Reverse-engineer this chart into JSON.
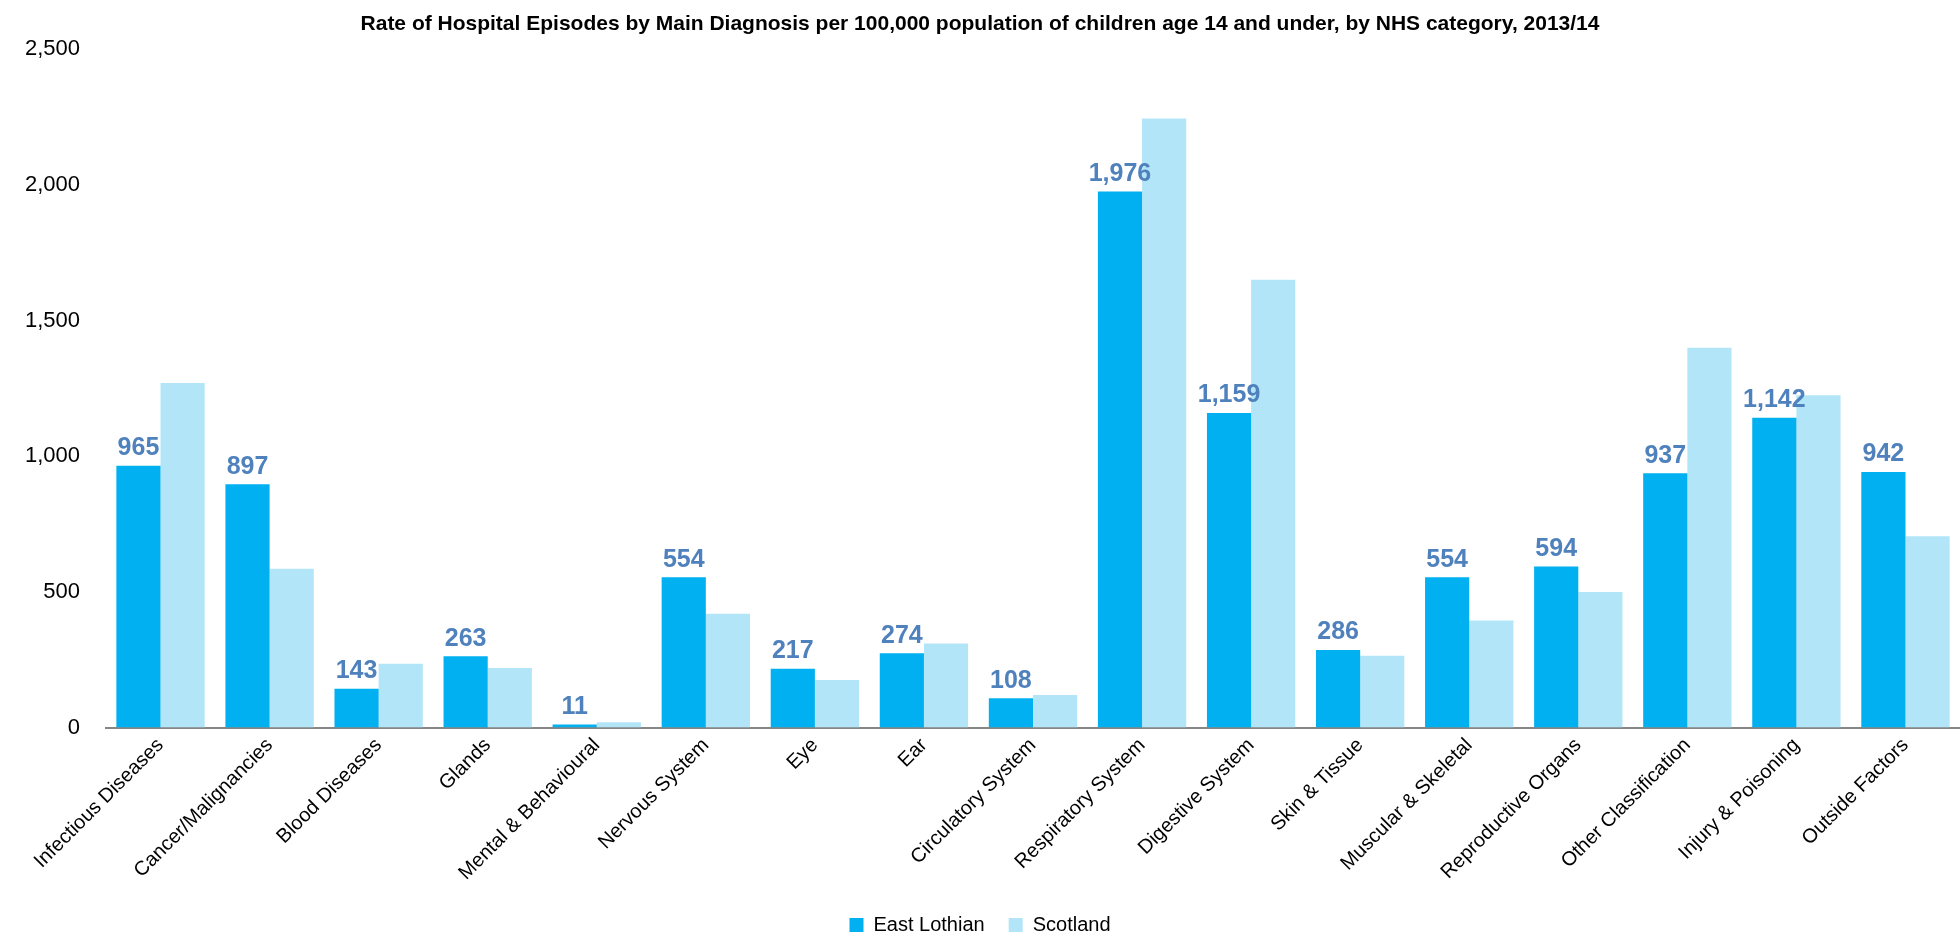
{
  "chart_data": {
    "type": "bar",
    "title": "Rate of Hospital Episodes by Main Diagnosis per 100,000 population of children age 14 and under, by NHS category, 2013/14",
    "categories": [
      "Infectious Diseases",
      "Cancer/Malignancies",
      "Blood Diseases",
      "Glands",
      "Mental & Behavioural",
      "Nervous System",
      "Eye",
      "Ear",
      "Circulatory System",
      "Respiratory System",
      "Digestive System",
      "Skin & Tissue",
      "Muscular & Skeletal",
      "Reproductive Organs",
      "Other Classification",
      "Injury & Poisoning",
      "Outside Factors"
    ],
    "series": [
      {
        "name": "East Lothian",
        "color": "#00b0f0",
        "values": [
          965,
          897,
          143,
          263,
          11,
          554,
          217,
          274,
          108,
          1976,
          1159,
          286,
          554,
          594,
          937,
          1142,
          942
        ],
        "value_labels": [
          "965",
          "897",
          "143",
          "263",
          "11",
          "554",
          "217",
          "274",
          "108",
          "1,976",
          "1,159",
          "286",
          "554",
          "594",
          "937",
          "1,142",
          "942"
        ]
      },
      {
        "name": "Scotland",
        "color": "#b3e5f9",
        "values": [
          1270,
          585,
          235,
          220,
          20,
          420,
          175,
          310,
          120,
          2245,
          1650,
          265,
          395,
          500,
          1400,
          1225,
          705
        ]
      }
    ],
    "ylim": [
      0,
      2500
    ],
    "yticks": [
      0,
      500,
      {
        "value": 1000,
        "label": "1,000"
      },
      {
        "value": 1500,
        "label": "1,500"
      },
      {
        "value": 2000,
        "label": "2,000"
      },
      {
        "value": 2500,
        "label": "2,500"
      }
    ],
    "legend": "bottom"
  }
}
